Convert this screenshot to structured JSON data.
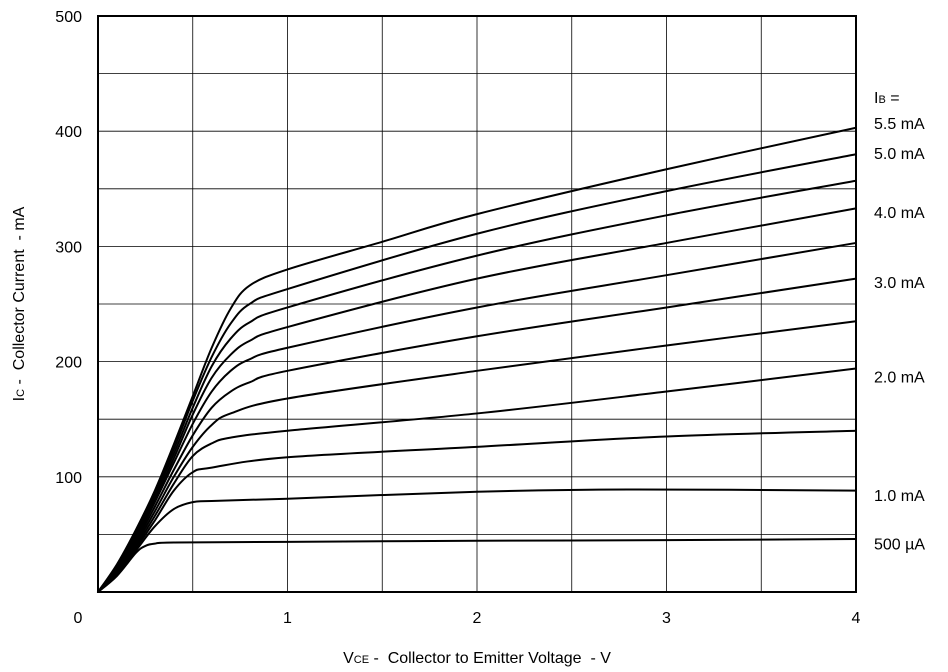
{
  "chart_data": {
    "type": "line",
    "title": "",
    "xlabel": {
      "main": "V",
      "sub": "CE",
      "rest": " -  Collector to Emitter Voltage  - V"
    },
    "ylabel": {
      "main": "I",
      "sub": "C",
      "rest": " -  Collector Current  - mA"
    },
    "xlim": [
      0,
      4
    ],
    "ylim": [
      0,
      500
    ],
    "x_ticks": [
      {
        "value": 0,
        "label": "0"
      },
      {
        "value": 1,
        "label": "1"
      },
      {
        "value": 2,
        "label": "2"
      },
      {
        "value": 3,
        "label": "3"
      },
      {
        "value": 4,
        "label": "4"
      }
    ],
    "y_ticks": [
      {
        "value": 100,
        "label": "100"
      },
      {
        "value": 200,
        "label": "200"
      },
      {
        "value": 300,
        "label": "300"
      },
      {
        "value": 400,
        "label": "400"
      },
      {
        "value": 500,
        "label": "500"
      }
    ],
    "grid": true,
    "legend_header": {
      "main": "I",
      "sub": "B",
      "rest": " ="
    },
    "series": [
      {
        "label": "500 µA",
        "x": [
          0,
          0.1,
          0.2,
          0.25,
          0.3,
          0.4,
          1,
          2,
          3,
          4
        ],
        "y": [
          0,
          14,
          34,
          40,
          42,
          43,
          43.5,
          44.5,
          45,
          46
        ]
      },
      {
        "label": "",
        "x": [
          0,
          0.1,
          0.2,
          0.3,
          0.4,
          0.5,
          0.6,
          1,
          2,
          2.8,
          4
        ],
        "y": [
          0,
          15,
          36,
          57,
          72,
          78,
          79,
          81,
          87,
          89,
          88
        ]
      },
      {
        "label": "1.0 mA",
        "x": [
          0,
          0.1,
          0.2,
          0.3,
          0.4,
          0.5,
          0.6,
          1,
          2,
          3,
          4
        ],
        "y": [
          0,
          16,
          38,
          62,
          88,
          104,
          108,
          117,
          126,
          135,
          140
        ]
      },
      {
        "label": "",
        "x": [
          0,
          0.1,
          0.2,
          0.3,
          0.4,
          0.5,
          0.6,
          0.7,
          1,
          2,
          3,
          4
        ],
        "y": [
          0,
          17,
          40,
          66,
          94,
          118,
          129,
          134,
          140,
          155,
          174,
          194
        ]
      },
      {
        "label": "2.0 mA",
        "x": [
          0,
          0.1,
          0.2,
          0.3,
          0.4,
          0.5,
          0.6,
          0.7,
          1,
          2,
          3,
          4
        ],
        "y": [
          0,
          18,
          42,
          70,
          100,
          126,
          145,
          155,
          168,
          192,
          214,
          235
        ]
      },
      {
        "label": "",
        "x": [
          0,
          0.1,
          0.2,
          0.3,
          0.4,
          0.5,
          0.6,
          0.7,
          0.8,
          1,
          2,
          3,
          4
        ],
        "y": [
          0,
          19,
          44,
          74,
          106,
          136,
          160,
          174,
          182,
          192,
          222,
          247,
          272
        ]
      },
      {
        "label": "3.0 mA",
        "x": [
          0,
          0.1,
          0.2,
          0.3,
          0.4,
          0.5,
          0.6,
          0.7,
          0.8,
          1,
          2,
          3,
          4
        ],
        "y": [
          0,
          20,
          46,
          78,
          112,
          146,
          174,
          192,
          202,
          212,
          247,
          275,
          303
        ]
      },
      {
        "label": "",
        "x": [
          0,
          0.1,
          0.2,
          0.3,
          0.4,
          0.5,
          0.6,
          0.7,
          0.8,
          1,
          2,
          3,
          4
        ],
        "y": [
          0,
          21,
          48,
          81,
          116,
          154,
          186,
          206,
          218,
          230,
          272,
          303,
          333
        ]
      },
      {
        "label": "4.0 mA",
        "x": [
          0,
          0.1,
          0.2,
          0.3,
          0.4,
          0.5,
          0.6,
          0.7,
          0.8,
          1,
          2,
          3,
          4
        ],
        "y": [
          0,
          22,
          50,
          84,
          120,
          160,
          196,
          220,
          234,
          247,
          292,
          327,
          357
        ]
      },
      {
        "label": "",
        "x": [
          0,
          0.1,
          0.2,
          0.3,
          0.4,
          0.5,
          0.6,
          0.7,
          0.8,
          1,
          2,
          3,
          4
        ],
        "y": [
          0,
          23,
          52,
          86,
          124,
          166,
          204,
          233,
          250,
          263,
          311,
          348,
          380
        ]
      },
      {
        "label": "5.0 mA",
        "x": [
          0,
          0.1,
          0.2,
          0.3,
          0.4,
          0.5,
          0.6,
          0.7,
          0.8,
          1,
          1.5,
          2,
          3,
          4
        ],
        "y": [
          0,
          24,
          54,
          88,
          128,
          170,
          212,
          246,
          266,
          280,
          304,
          328,
          367,
          403
        ]
      }
    ],
    "right_labels": [
      {
        "text": "5.5 mA",
        "y": 407
      },
      {
        "text": "5.0 mA",
        "y": 381
      },
      {
        "text": "4.0 mA",
        "y": 330
      },
      {
        "text": "3.0 mA",
        "y": 269
      },
      {
        "text": "2.0 mA",
        "y": 187
      },
      {
        "text": "1.0 mA",
        "y": 84
      },
      {
        "text": "500 µA",
        "y": 42
      }
    ]
  }
}
